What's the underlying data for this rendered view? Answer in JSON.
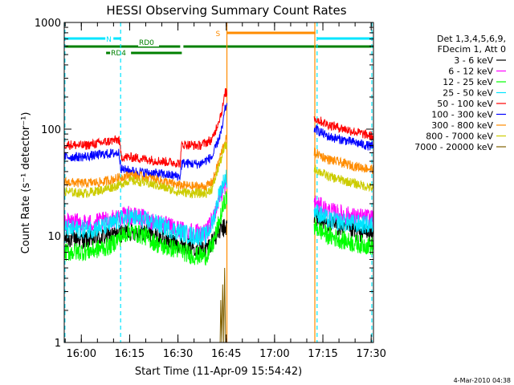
{
  "chart_data": {
    "type": "line",
    "title": "HESSI Observing Summary Count Rates",
    "xlabel": "Start Time (11-Apr-09 15:54:42)",
    "ylabel": "Count Rate (s⁻¹ detector⁻¹)",
    "yscale": "log",
    "ylim": [
      1,
      1000
    ],
    "xlim_minutes": [
      0,
      96
    ],
    "y_ticks": [
      "1",
      "10",
      "100",
      "1000"
    ],
    "x_ticks": [
      {
        "label": "16:00",
        "t": 5.3
      },
      {
        "label": "16:15",
        "t": 20.3
      },
      {
        "label": "16:30",
        "t": 35.3
      },
      {
        "label": "16:45",
        "t": 50.3
      },
      {
        "label": "17:00",
        "t": 65.3
      },
      {
        "label": "17:15",
        "t": 80.3
      },
      {
        "label": "17:30",
        "t": 95.3
      }
    ],
    "legend": {
      "header": [
        "Det 1,3,4,5,6,9,",
        "FDecim 1, Att 0"
      ],
      "placement": "right"
    },
    "flags": [
      {
        "label": "N",
        "color": "#00e5ff",
        "segments": [
          [
            0,
            17.5
          ],
          [
            78.5,
            96
          ]
        ]
      },
      {
        "label": "S",
        "color": "#ff8c00",
        "segments": [
          [
            50.5,
            78
          ]
        ]
      },
      {
        "label": "RD0",
        "color": "#008000",
        "segments": [
          [
            0,
            36
          ],
          [
            37,
            96
          ]
        ]
      },
      {
        "label": "RD4",
        "color": "#008000",
        "segments": [
          [
            13,
            36.5
          ]
        ]
      }
    ],
    "vertical_markers": [
      {
        "color": "#00e5ff",
        "t": [
          0.2,
          17.5,
          78.5,
          95.5
        ],
        "style": "dashed"
      },
      {
        "color": "#ff8c00",
        "t": [
          50.5,
          77.8
        ],
        "style": "solid"
      }
    ],
    "gaps": [
      [
        50.6,
        77.5
      ]
    ],
    "series": [
      {
        "name": "3 - 6 keV",
        "color": "#000000",
        "points": [
          [
            0,
            9.5
          ],
          [
            8,
            9.2
          ],
          [
            14,
            10
          ],
          [
            17,
            10.5
          ],
          [
            20,
            11
          ],
          [
            25,
            11
          ],
          [
            30,
            9.5
          ],
          [
            35,
            8.5
          ],
          [
            40,
            8
          ],
          [
            44,
            7.5
          ],
          [
            46,
            9
          ],
          [
            48,
            11
          ],
          [
            50,
            12
          ],
          [
            78,
            15
          ],
          [
            82,
            13
          ],
          [
            90,
            11
          ],
          [
            96,
            10.5
          ]
        ]
      },
      {
        "name": "6 - 12 keV",
        "color": "#ff00ff",
        "points": [
          [
            0,
            13.5
          ],
          [
            8,
            13
          ],
          [
            14,
            14
          ],
          [
            17,
            15
          ],
          [
            20,
            15.5
          ],
          [
            25,
            14.5
          ],
          [
            30,
            13
          ],
          [
            35,
            11.5
          ],
          [
            40,
            11
          ],
          [
            44,
            10.5
          ],
          [
            46,
            14
          ],
          [
            48,
            22
          ],
          [
            50,
            30
          ],
          [
            78,
            20
          ],
          [
            82,
            17
          ],
          [
            90,
            15
          ],
          [
            96,
            14.5
          ]
        ]
      },
      {
        "name": "12 - 25 keV",
        "color": "#00ff00",
        "points": [
          [
            0,
            7
          ],
          [
            8,
            7.2
          ],
          [
            14,
            8
          ],
          [
            17,
            9.5
          ],
          [
            20,
            11
          ],
          [
            25,
            10
          ],
          [
            30,
            8
          ],
          [
            35,
            7.5
          ],
          [
            40,
            6.5
          ],
          [
            44,
            6.5
          ],
          [
            46,
            8
          ],
          [
            48,
            13
          ],
          [
            50,
            22
          ],
          [
            78,
            12
          ],
          [
            82,
            10
          ],
          [
            90,
            8.5
          ],
          [
            96,
            8
          ]
        ]
      },
      {
        "name": "25 - 50 keV",
        "color": "#00e5ff",
        "points": [
          [
            0,
            11.5
          ],
          [
            8,
            11.5
          ],
          [
            14,
            12.5
          ],
          [
            17,
            14
          ],
          [
            20,
            15
          ],
          [
            25,
            14
          ],
          [
            30,
            12.5
          ],
          [
            35,
            11
          ],
          [
            40,
            10
          ],
          [
            44,
            10
          ],
          [
            46,
            13
          ],
          [
            48,
            24
          ],
          [
            50,
            35
          ],
          [
            78,
            17
          ],
          [
            82,
            14
          ],
          [
            90,
            13
          ],
          [
            96,
            12.5
          ]
        ]
      },
      {
        "name": "50 - 100 keV",
        "color": "#ff0000",
        "points": [
          [
            0,
            72
          ],
          [
            6,
            70
          ],
          [
            12,
            75
          ],
          [
            17,
            80
          ],
          [
            17.7,
            55
          ],
          [
            22,
            54
          ],
          [
            30,
            50
          ],
          [
            36,
            48
          ],
          [
            36.5,
            72
          ],
          [
            42,
            70
          ],
          [
            46,
            80
          ],
          [
            49,
            150
          ],
          [
            50,
            220
          ],
          [
            78,
            125
          ],
          [
            82,
            110
          ],
          [
            90,
            95
          ],
          [
            96,
            85
          ]
        ]
      },
      {
        "name": "100 - 300 keV",
        "color": "#0000ff",
        "points": [
          [
            0,
            55
          ],
          [
            6,
            55
          ],
          [
            12,
            58
          ],
          [
            17,
            60
          ],
          [
            17.7,
            42
          ],
          [
            22,
            40
          ],
          [
            30,
            38
          ],
          [
            36,
            36
          ],
          [
            36.5,
            48
          ],
          [
            42,
            47
          ],
          [
            46,
            55
          ],
          [
            49,
            100
          ],
          [
            50,
            160
          ],
          [
            78,
            100
          ],
          [
            82,
            85
          ],
          [
            90,
            75
          ],
          [
            96,
            68
          ]
        ]
      },
      {
        "name": "300 - 800 keV",
        "color": "#ff8c00",
        "points": [
          [
            0,
            32
          ],
          [
            6,
            31
          ],
          [
            12,
            32
          ],
          [
            17,
            35
          ],
          [
            20,
            37
          ],
          [
            24,
            36
          ],
          [
            30,
            33
          ],
          [
            35,
            30
          ],
          [
            40,
            29
          ],
          [
            44,
            29
          ],
          [
            46,
            32
          ],
          [
            48,
            50
          ],
          [
            50,
            80
          ],
          [
            78,
            60
          ],
          [
            82,
            52
          ],
          [
            90,
            45
          ],
          [
            96,
            42
          ]
        ]
      },
      {
        "name": "800 - 7000 keV",
        "color": "#cccc00",
        "points": [
          [
            0,
            26
          ],
          [
            6,
            25
          ],
          [
            12,
            27
          ],
          [
            17,
            30
          ],
          [
            20,
            33
          ],
          [
            24,
            32
          ],
          [
            30,
            29
          ],
          [
            35,
            26
          ],
          [
            40,
            25
          ],
          [
            44,
            25
          ],
          [
            46,
            28
          ],
          [
            48,
            45
          ],
          [
            50,
            70
          ],
          [
            78,
            42
          ],
          [
            82,
            36
          ],
          [
            90,
            31
          ],
          [
            96,
            28
          ]
        ]
      },
      {
        "name": "7000 - 20000 keV",
        "color": "#806000",
        "points": [
          [
            48.4,
            1
          ],
          [
            48.6,
            2.5
          ],
          [
            48.9,
            1
          ],
          [
            49.2,
            3.5
          ],
          [
            49.5,
            1
          ],
          [
            49.8,
            5
          ],
          [
            50.1,
            1
          ]
        ]
      }
    ]
  },
  "footer": {
    "timestamp": "4-Mar-2010 04:38"
  }
}
